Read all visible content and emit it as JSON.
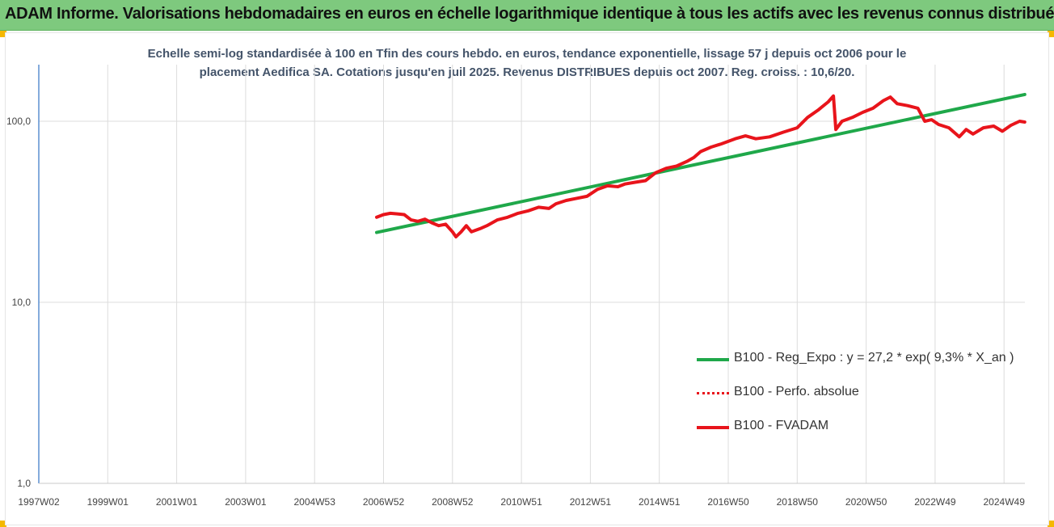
{
  "header": {
    "title": "ADAM Informe. Valorisations hebdomadaires en euros en échelle logarithmique identique à tous les actifs avec les revenus connus distribués",
    "background": "#7ec97e",
    "corner_color": "#f5b800"
  },
  "chart_data": {
    "type": "line",
    "title_lines": [
      "Echelle semi-log standardisée à 100 en Tfin des cours hebdo. en euros, tendance exponentielle, lissage 57 j depuis oct 2006 pour le",
      "placement Aedifica SA. Cotations jusqu'en juil 2025.  Revenus DISTRIBUES depuis oct 2007. Reg. croiss. : 10,6/20."
    ],
    "y_scale": "log",
    "ylim": [
      1,
      200
    ],
    "y_ticks": [
      {
        "value": 1,
        "label": "1,0"
      },
      {
        "value": 10,
        "label": "10,0"
      },
      {
        "value": 100,
        "label": "100,0"
      }
    ],
    "x_range": [
      1997.0,
      2025.6
    ],
    "x_ticks": [
      {
        "x": 1997.0,
        "label": "1997W02"
      },
      {
        "x": 1999.0,
        "label": "1999W01"
      },
      {
        "x": 2001.0,
        "label": "2001W01"
      },
      {
        "x": 2003.0,
        "label": "2003W01"
      },
      {
        "x": 2005.0,
        "label": "2004W53"
      },
      {
        "x": 2007.0,
        "label": "2006W52"
      },
      {
        "x": 2009.0,
        "label": "2008W52"
      },
      {
        "x": 2011.0,
        "label": "2010W51"
      },
      {
        "x": 2013.0,
        "label": "2012W51"
      },
      {
        "x": 2015.0,
        "label": "2014W51"
      },
      {
        "x": 2017.0,
        "label": "2016W50"
      },
      {
        "x": 2019.0,
        "label": "2018W50"
      },
      {
        "x": 2021.0,
        "label": "2020W50"
      },
      {
        "x": 2023.0,
        "label": "2022W49"
      },
      {
        "x": 2025.0,
        "label": "2024W49"
      }
    ],
    "grid": true,
    "legend_position": "bottom-right",
    "series": [
      {
        "name": "B100 - Reg_Expo : y = 27,2 * exp( 9,3% *  X_an )",
        "color": "#1fa84a",
        "style": "solid",
        "points": [
          [
            2006.8,
            24.3
          ],
          [
            2025.6,
            140.5
          ]
        ]
      },
      {
        "name": "B100 - Perfo. absolue",
        "color": "#e8141b",
        "style": "dotted",
        "points": []
      },
      {
        "name": "B100 - FVADAM",
        "color": "#e8141b",
        "style": "solid",
        "points": [
          [
            2006.8,
            29.5
          ],
          [
            2007.0,
            30.5
          ],
          [
            2007.2,
            31.0
          ],
          [
            2007.4,
            30.8
          ],
          [
            2007.6,
            30.5
          ],
          [
            2007.8,
            28.5
          ],
          [
            2008.0,
            28.0
          ],
          [
            2008.2,
            28.8
          ],
          [
            2008.4,
            27.5
          ],
          [
            2008.6,
            26.5
          ],
          [
            2008.8,
            27.0
          ],
          [
            2009.0,
            24.5
          ],
          [
            2009.1,
            23.0
          ],
          [
            2009.25,
            24.5
          ],
          [
            2009.4,
            26.5
          ],
          [
            2009.55,
            24.5
          ],
          [
            2009.8,
            25.5
          ],
          [
            2010.0,
            26.5
          ],
          [
            2010.3,
            28.5
          ],
          [
            2010.6,
            29.5
          ],
          [
            2010.9,
            31.0
          ],
          [
            2011.2,
            32.0
          ],
          [
            2011.5,
            33.5
          ],
          [
            2011.8,
            33.0
          ],
          [
            2012.0,
            35.0
          ],
          [
            2012.3,
            36.5
          ],
          [
            2012.6,
            37.5
          ],
          [
            2012.9,
            38.5
          ],
          [
            2013.2,
            42.0
          ],
          [
            2013.5,
            44.0
          ],
          [
            2013.8,
            43.5
          ],
          [
            2014.0,
            45.0
          ],
          [
            2014.3,
            46.0
          ],
          [
            2014.6,
            47.0
          ],
          [
            2014.9,
            52.0
          ],
          [
            2015.2,
            55.0
          ],
          [
            2015.5,
            56.5
          ],
          [
            2015.8,
            60.0
          ],
          [
            2016.0,
            63.0
          ],
          [
            2016.2,
            68.0
          ],
          [
            2016.5,
            72.0
          ],
          [
            2016.8,
            75.0
          ],
          [
            2017.2,
            80.0
          ],
          [
            2017.5,
            83.0
          ],
          [
            2017.8,
            80.0
          ],
          [
            2018.2,
            82.0
          ],
          [
            2018.6,
            87.0
          ],
          [
            2019.0,
            92.0
          ],
          [
            2019.3,
            105.0
          ],
          [
            2019.6,
            115.0
          ],
          [
            2019.9,
            128.0
          ],
          [
            2020.05,
            138.0
          ],
          [
            2020.12,
            90.0
          ],
          [
            2020.3,
            100.0
          ],
          [
            2020.6,
            105.0
          ],
          [
            2020.9,
            112.0
          ],
          [
            2021.2,
            118.0
          ],
          [
            2021.5,
            130.0
          ],
          [
            2021.7,
            136.0
          ],
          [
            2021.9,
            125.0
          ],
          [
            2022.2,
            122.0
          ],
          [
            2022.5,
            118.0
          ],
          [
            2022.7,
            100.0
          ],
          [
            2022.9,
            102.0
          ],
          [
            2023.1,
            96.0
          ],
          [
            2023.4,
            92.0
          ],
          [
            2023.7,
            82.0
          ],
          [
            2023.9,
            90.0
          ],
          [
            2024.1,
            85.0
          ],
          [
            2024.4,
            92.0
          ],
          [
            2024.7,
            94.0
          ],
          [
            2024.95,
            88.0
          ],
          [
            2025.2,
            95.0
          ],
          [
            2025.45,
            100.0
          ],
          [
            2025.6,
            99.0
          ]
        ]
      }
    ]
  }
}
